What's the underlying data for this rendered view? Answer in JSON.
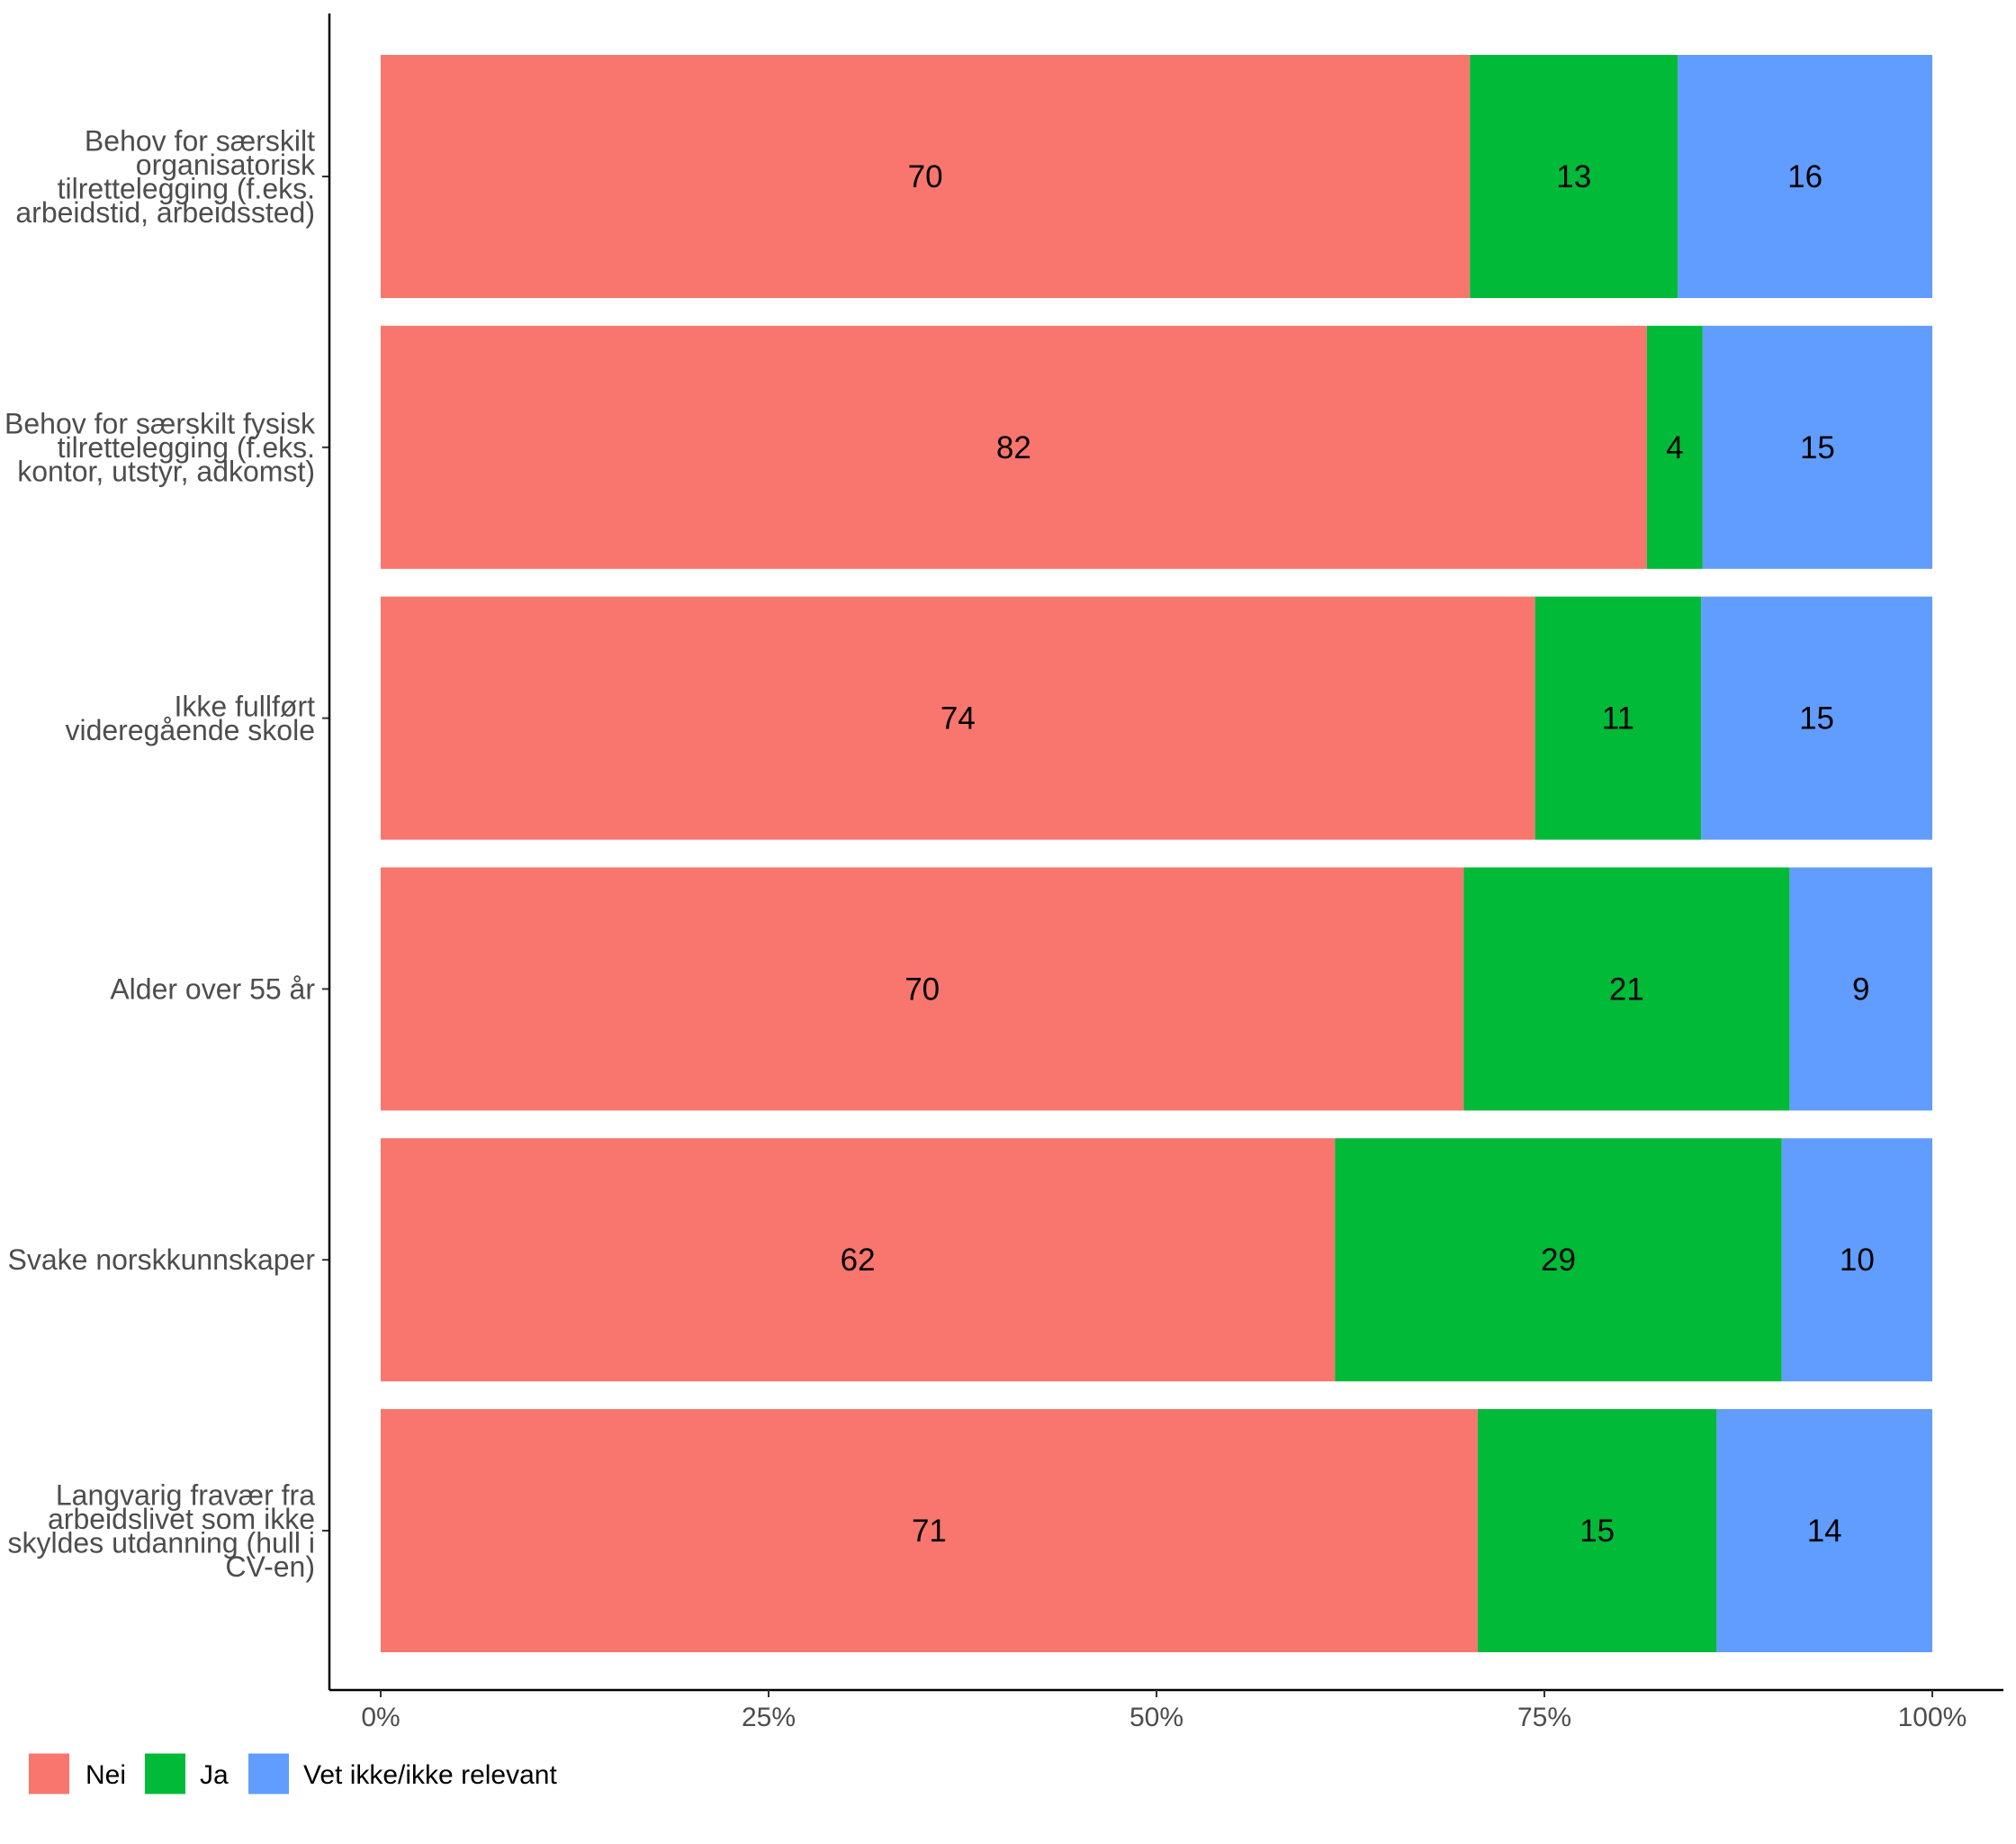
{
  "chart_data": {
    "type": "bar",
    "orientation": "horizontal",
    "stacked": true,
    "categories": [
      "Behov for særskilt organisatorisk tilrettelegging (f.eks. arbeidstid, arbeidssted)",
      "Behov for særskilt fysisk tilrettelegging (f.eks. kontor, utstyr, adkomst)",
      "Ikke fullført videregående skole",
      "Alder over 55 år",
      "Svake norskkunnskaper",
      "Langvarig fravær fra arbeidslivet som ikke skyldes utdanning (hull i CV-en)"
    ],
    "category_lines": [
      [
        "Behov for særskilt",
        "organisatorisk",
        "tilrettelegging (f.eks.",
        "arbeidstid, arbeidssted)"
      ],
      [
        "Behov for særskilt fysisk",
        "tilrettelegging (f.eks.",
        "kontor, utstyr, adkomst)"
      ],
      [
        "Ikke fullført",
        "videregående skole"
      ],
      [
        "Alder over 55 år"
      ],
      [
        "Svake norskkunnskaper"
      ],
      [
        "Langvarig fravær fra",
        "arbeidslivet som ikke",
        "skyldes utdanning (hull i",
        "CV-en)"
      ]
    ],
    "series": [
      {
        "name": "Nei",
        "color": "#F8766D",
        "values": [
          70.2,
          81.6,
          74.4,
          69.8,
          61.5,
          70.7
        ]
      },
      {
        "name": "Ja",
        "color": "#00BA38",
        "values": [
          13.4,
          3.6,
          10.7,
          21.0,
          28.8,
          15.4
        ]
      },
      {
        "name": "Vet ikke/ikke relevant",
        "color": "#619CFF",
        "values": [
          16.4,
          14.8,
          14.9,
          9.2,
          9.7,
          13.9
        ]
      }
    ],
    "data_labels": [
      [
        "70",
        "13",
        "16"
      ],
      [
        "82",
        "4",
        "15"
      ],
      [
        "74",
        "11",
        "15"
      ],
      [
        "70",
        "21",
        "9"
      ],
      [
        "62",
        "29",
        "10"
      ],
      [
        "71",
        "15",
        "14"
      ]
    ],
    "xlim": [
      0,
      100
    ],
    "x_ticks": [
      0,
      25,
      50,
      75,
      100
    ],
    "x_tick_labels": [
      "0%",
      "25%",
      "50%",
      "75%",
      "100%"
    ],
    "title": "",
    "xlabel": "",
    "ylabel": "",
    "grid": false,
    "legend_position": "bottom-left"
  }
}
